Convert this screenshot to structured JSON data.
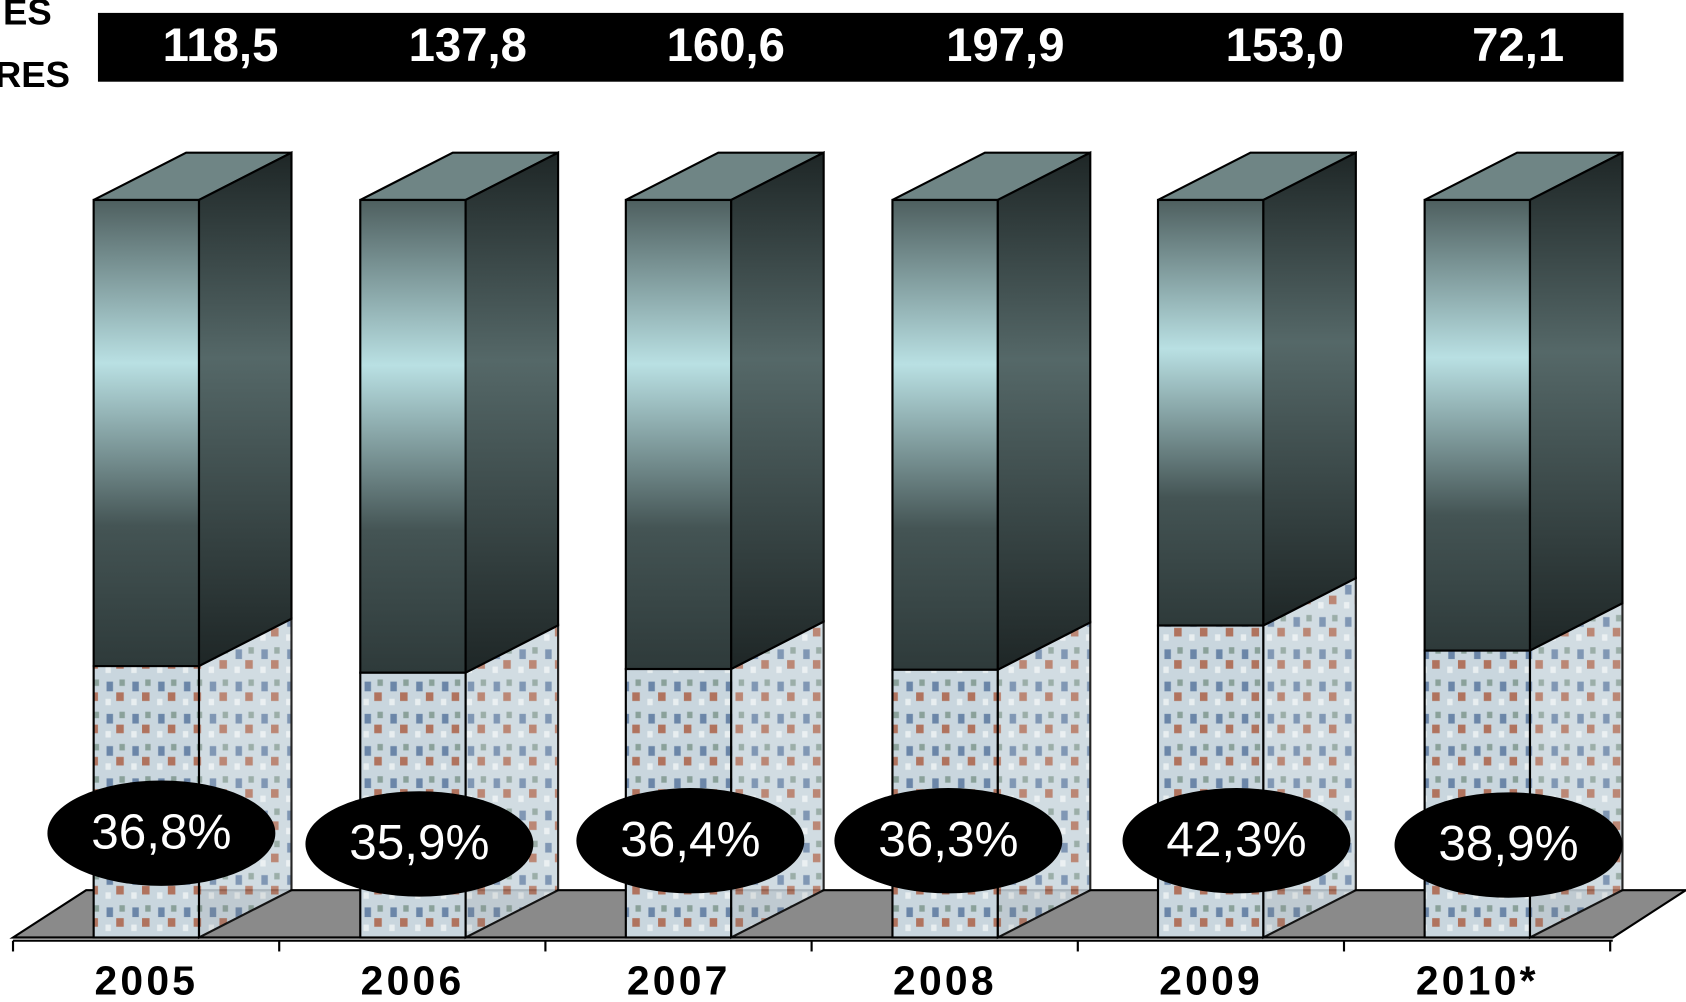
{
  "chart_data": {
    "type": "bar",
    "row_labels": [
      "ES",
      "RES"
    ],
    "categories": [
      "2005",
      "2006",
      "2007",
      "2008",
      "2009",
      "2010*"
    ],
    "totals": [
      118.5,
      137.8,
      160.6,
      197.9,
      153.0,
      72.1
    ],
    "totals_labels": [
      "118,5",
      "137,8",
      "160,6",
      "197,9",
      "153,0",
      "72,1"
    ],
    "values": [
      36.8,
      35.9,
      36.4,
      36.3,
      42.3,
      38.9
    ],
    "value_labels": [
      "36,8%",
      "35,9%",
      "36,4%",
      "36,3%",
      "42,3%",
      "38,9%"
    ],
    "ylim": [
      0,
      100
    ]
  }
}
